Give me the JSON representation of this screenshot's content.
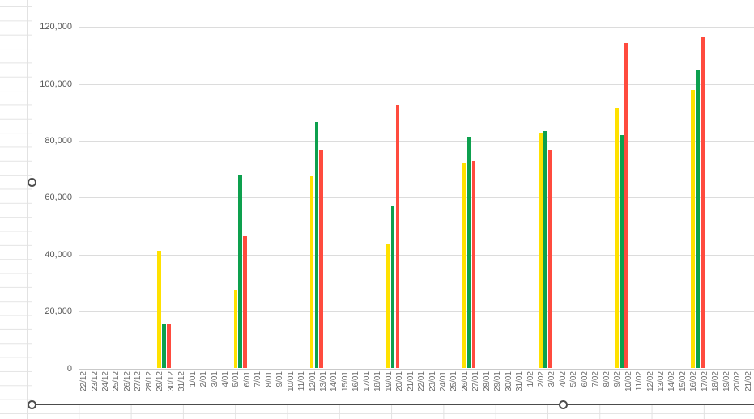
{
  "app": {
    "kind": "spreadsheet with selected embedded chart",
    "sheet_gridline_color": "#e2e2e2",
    "chart_border_color": "#4c4c4c"
  },
  "selection": {
    "handles": [
      {
        "position": "left-middle"
      },
      {
        "position": "bottom-left"
      },
      {
        "position": "bottom-center"
      }
    ]
  },
  "chart_data": {
    "type": "bar",
    "title": "",
    "xlabel": "",
    "ylabel": "",
    "legend": "none",
    "grid": "horizontal",
    "x_label_rotation": -90,
    "ylim": [
      0,
      120000
    ],
    "ytick_step": 20000,
    "ytick_labels": [
      "0",
      "20,000",
      "40,000",
      "60,000",
      "80,000",
      "100,000",
      "120,000"
    ],
    "categories": [
      "22/12",
      "23/12",
      "24/12",
      "25/12",
      "26/12",
      "27/12",
      "28/12",
      "29/12",
      "30/12",
      "31/12",
      "1/01",
      "2/01",
      "3/01",
      "4/01",
      "5/01",
      "6/01",
      "7/01",
      "8/01",
      "9/01",
      "10/01",
      "11/01",
      "12/01",
      "13/01",
      "14/01",
      "15/01",
      "16/01",
      "17/01",
      "18/01",
      "19/01",
      "20/01",
      "21/01",
      "22/01",
      "23/01",
      "24/01",
      "25/01",
      "26/01",
      "27/01",
      "28/01",
      "29/01",
      "30/01",
      "31/01",
      "1/02",
      "2/02",
      "3/02",
      "4/02",
      "5/02",
      "6/02",
      "7/02",
      "8/02",
      "9/02",
      "10/02",
      "11/02",
      "12/02",
      "13/02",
      "14/02",
      "15/02",
      "16/02",
      "17/02",
      "18/02",
      "19/02",
      "20/02",
      "21/02"
    ],
    "bar_dates": [
      "29/12",
      "5/01",
      "12/01",
      "19/01",
      "26/01",
      "2/02",
      "9/02",
      "16/02"
    ],
    "series": [
      {
        "name": "series-yellow",
        "color": "#FFE100",
        "values": [
          41500,
          27500,
          67500,
          43500,
          72000,
          83000,
          91500,
          98000
        ]
      },
      {
        "name": "series-green",
        "color": "#0DA04E",
        "values": [
          15500,
          68000,
          86500,
          57000,
          81500,
          83500,
          82000,
          105000
        ]
      },
      {
        "name": "series-red",
        "color": "#FF4B3E",
        "values": [
          15500,
          46500,
          76500,
          92500,
          73000,
          76500,
          114500,
          116500
        ]
      }
    ]
  }
}
